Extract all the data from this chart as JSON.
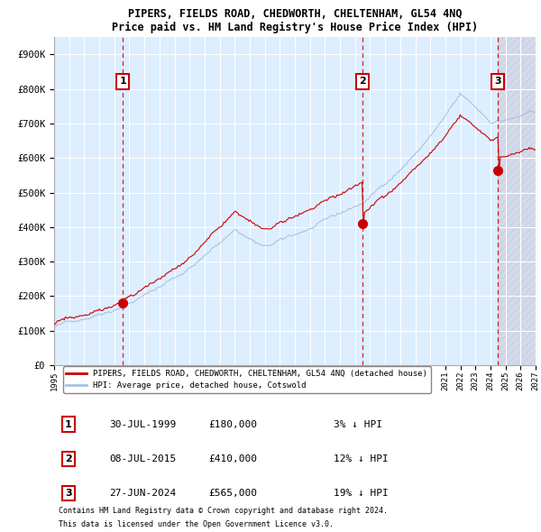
{
  "title": "PIPERS, FIELDS ROAD, CHEDWORTH, CHELTENHAM, GL54 4NQ",
  "subtitle": "Price paid vs. HM Land Registry's House Price Index (HPI)",
  "hpi_line_color": "#a8c4e0",
  "price_line_color": "#cc0000",
  "sale_dot_color": "#cc0000",
  "vline_color": "#cc0000",
  "background_color": "#ddeeff",
  "grid_color": "#ffffff",
  "ylim": [
    0,
    950000
  ],
  "yticks": [
    0,
    100000,
    200000,
    300000,
    400000,
    500000,
    600000,
    700000,
    800000,
    900000
  ],
  "ytick_labels": [
    "£0",
    "£100K",
    "£200K",
    "£300K",
    "£400K",
    "£500K",
    "£600K",
    "£700K",
    "£800K",
    "£900K"
  ],
  "sales": [
    {
      "date_num": 4.58,
      "price": 180000,
      "label": "1",
      "date_str": "30-JUL-1999",
      "pct": "3%",
      "dir": "↓"
    },
    {
      "date_num": 20.5,
      "price": 410000,
      "label": "2",
      "date_str": "08-JUL-2015",
      "pct": "12%",
      "dir": "↓"
    },
    {
      "date_num": 29.5,
      "price": 565000,
      "label": "3",
      "date_str": "27-JUN-2024",
      "pct": "19%",
      "dir": "↓"
    }
  ],
  "legend_property_label": "PIPERS, FIELDS ROAD, CHEDWORTH, CHELTENHAM, GL54 4NQ (detached house)",
  "legend_hpi_label": "HPI: Average price, detached house, Cotswold",
  "footer1": "Contains HM Land Registry data © Crown copyright and database right 2024.",
  "footer2": "This data is licensed under the Open Government Licence v3.0.",
  "future_start": 29.5,
  "xmin": 0,
  "xmax": 32,
  "table_data": [
    [
      "1",
      "30-JUL-1999",
      "£180,000",
      "3% ↓ HPI"
    ],
    [
      "2",
      "08-JUL-2015",
      "£410,000",
      "12% ↓ HPI"
    ],
    [
      "3",
      "27-JUN-2024",
      "£565,000",
      "19% ↓ HPI"
    ]
  ]
}
